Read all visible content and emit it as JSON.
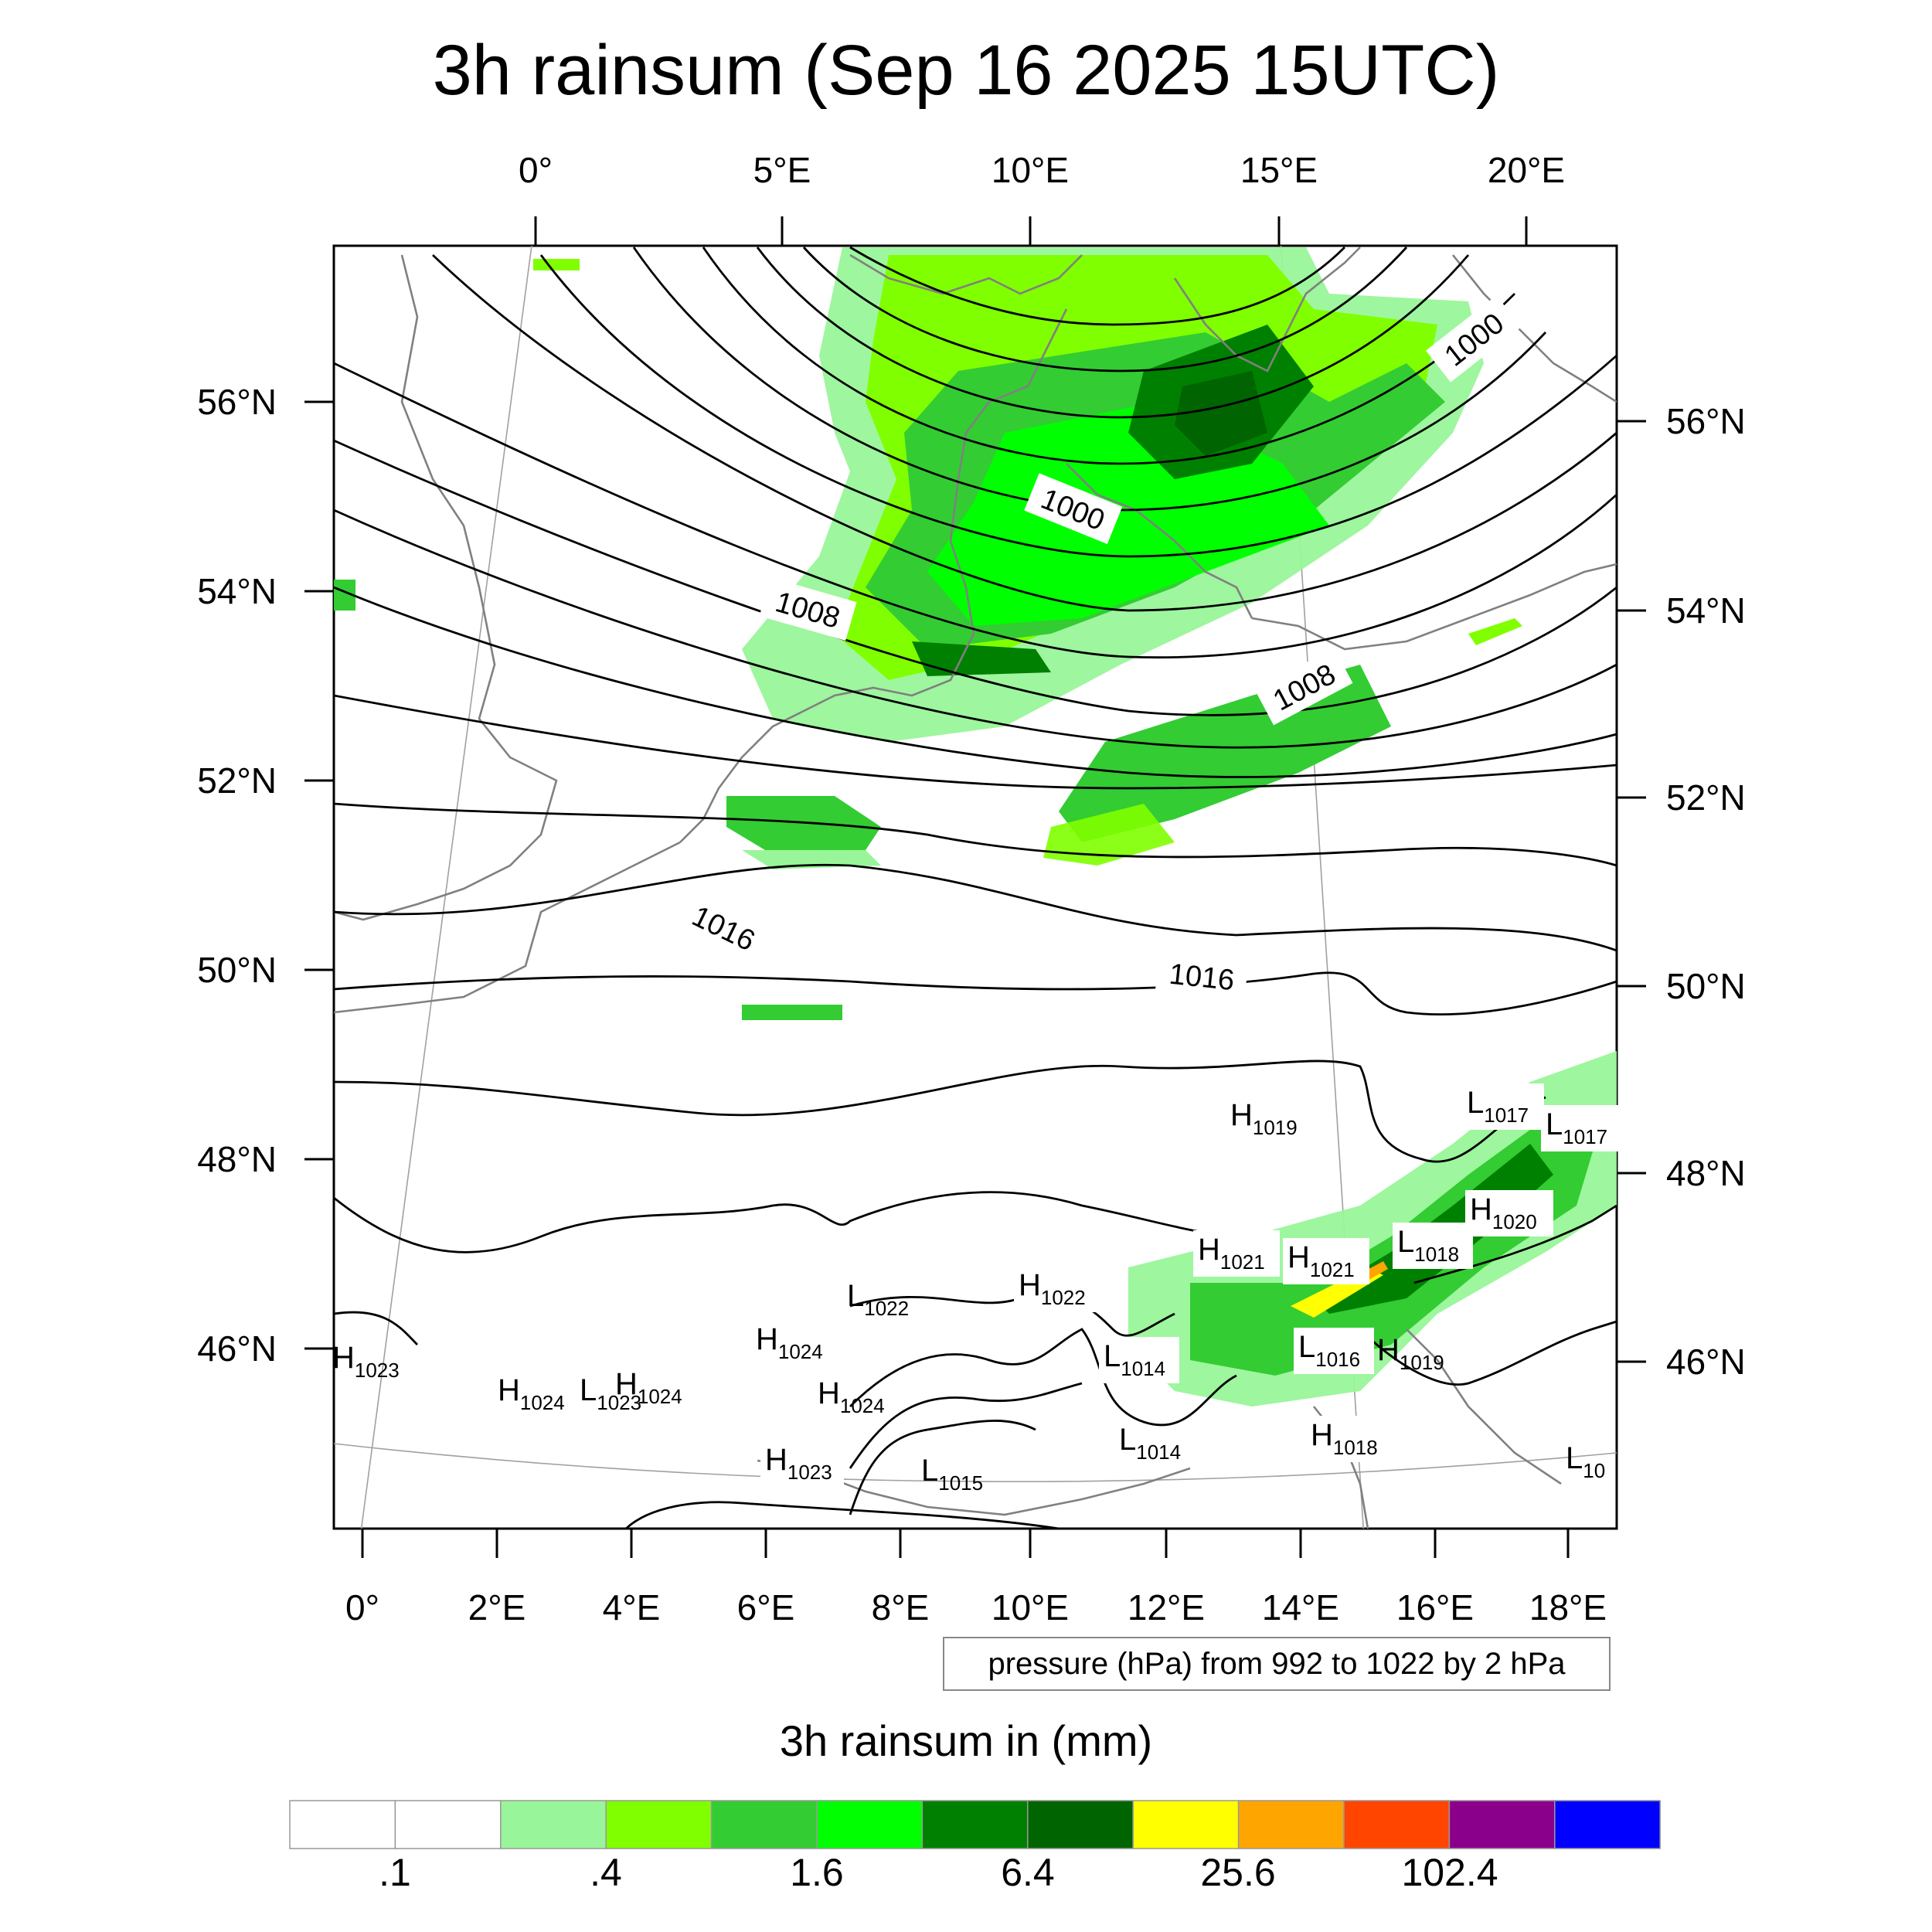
{
  "title": "3h rainsum (Sep 16 2025 15UTC)",
  "top_lon_labels": [
    "0°",
    "5°E",
    "10°E",
    "15°E",
    "20°E"
  ],
  "bottom_lon_labels": [
    "0°",
    "2°E",
    "4°E",
    "6°E",
    "8°E",
    "10°E",
    "12°E",
    "14°E",
    "16°E",
    "18°E"
  ],
  "left_lat_labels": [
    "56°N",
    "54°N",
    "52°N",
    "50°N",
    "48°N",
    "46°N"
  ],
  "right_lat_labels": [
    "56°N",
    "54°N",
    "52°N",
    "50°N",
    "48°N",
    "46°N"
  ],
  "contour_info": "pressure (hPa) from 992 to 1022 by 2 hPa",
  "isobar_labels": [
    "1000",
    "1008",
    "1000",
    "1008",
    "1016",
    "1016"
  ],
  "pressure_centers": [
    {
      "kind": "H",
      "value": "1019"
    },
    {
      "kind": "L",
      "value": "1017"
    },
    {
      "kind": "L",
      "value": "1017"
    },
    {
      "kind": "H",
      "value": "1020"
    },
    {
      "kind": "H",
      "value": "1021"
    },
    {
      "kind": "H",
      "value": "1021"
    },
    {
      "kind": "L",
      "value": "1018"
    },
    {
      "kind": "L",
      "value": "1022"
    },
    {
      "kind": "H",
      "value": "1022"
    },
    {
      "kind": "H",
      "value": "1024"
    },
    {
      "kind": "L",
      "value": "1014"
    },
    {
      "kind": "L",
      "value": "1016"
    },
    {
      "kind": "H",
      "value": "1019"
    },
    {
      "kind": "H",
      "value": "1023"
    },
    {
      "kind": "H",
      "value": "1024"
    },
    {
      "kind": "L",
      "value": "1023"
    },
    {
      "kind": "H",
      "value": "1024"
    },
    {
      "kind": "H",
      "value": "1024"
    },
    {
      "kind": "H",
      "value": "1023"
    },
    {
      "kind": "L",
      "value": "1015"
    },
    {
      "kind": "L",
      "value": "1014"
    },
    {
      "kind": "H",
      "value": "1018"
    },
    {
      "kind": "L",
      "value": "10"
    }
  ],
  "colorbar": {
    "title": "3h rainsum in (mm)",
    "colors": [
      "#ffffff",
      "#ffffff",
      "#99f599",
      "#80ff00",
      "#33cc33",
      "#00ff00",
      "#008000",
      "#006400",
      "#ffff00",
      "#ffa500",
      "#ff4500",
      "#8b008b",
      "#0000ff"
    ],
    "tick_labels": [
      ".1",
      ".4",
      "1.6",
      "6.4",
      "25.6",
      "102.4"
    ]
  },
  "colors": {
    "coastline": "#808080",
    "isobar": "#000000",
    "grid": "#a0a0a0"
  }
}
